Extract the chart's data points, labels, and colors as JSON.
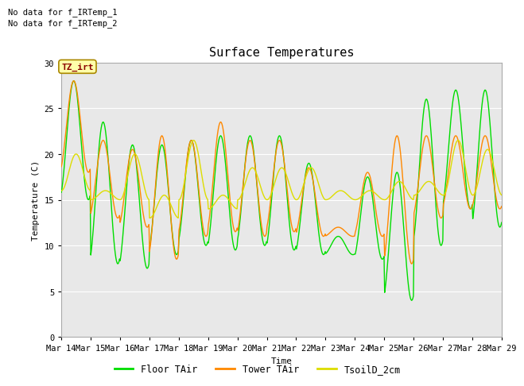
{
  "title": "Surface Temperatures",
  "ylabel": "Temperature (C)",
  "xlabel": "Time",
  "ylim": [
    0,
    30
  ],
  "background_color": "#e8e8e8",
  "figure_background": "#ffffff",
  "line_floor_color": "#00dd00",
  "line_tower_color": "#ff8800",
  "line_soil_color": "#dddd00",
  "line_width": 1.0,
  "text_no_data_1": "No data for f_IRTemp_1",
  "text_no_data_2": "No data for f_IRTemp_2",
  "annotation_label": "TZ_irt",
  "xtick_labels": [
    "Mar 14",
    "Mar 15",
    "Mar 16",
    "Mar 17",
    "Mar 18",
    "Mar 19",
    "Mar 20",
    "Mar 21",
    "Mar 22",
    "Mar 23",
    "Mar 24",
    "Mar 25",
    "Mar 26",
    "Mar 27",
    "Mar 28",
    "Mar 29"
  ],
  "legend_entries": [
    "Floor TAir",
    "Tower TAir",
    "TsoilD_2cm"
  ],
  "legend_colors": [
    "#00dd00",
    "#ff8800",
    "#dddd00"
  ],
  "title_fontsize": 11,
  "axis_fontsize": 8,
  "tick_fontsize": 7.5,
  "legend_fontsize": 8.5
}
